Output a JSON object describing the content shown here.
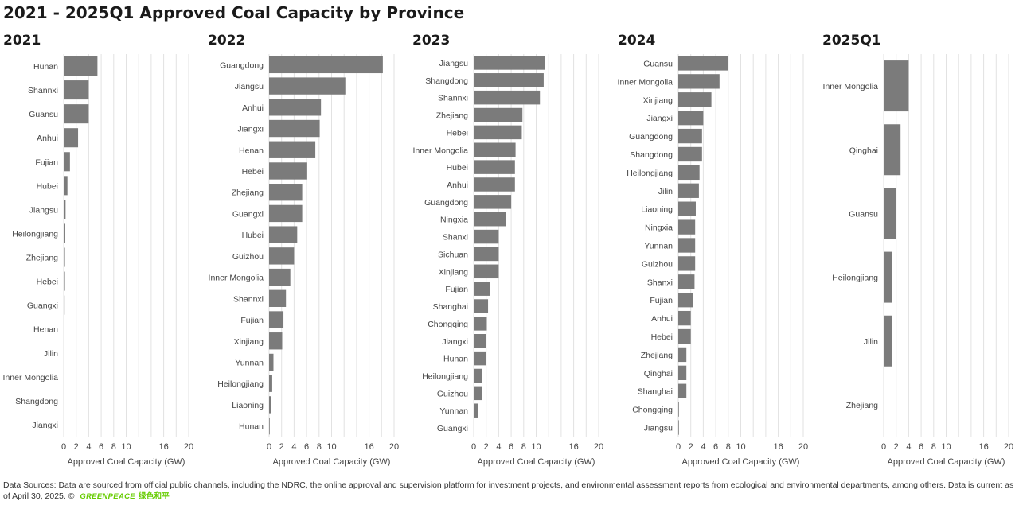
{
  "title": "2021 - 2025Q1 Approved Coal Capacity by Province",
  "footer": {
    "text": "Data Sources: Data are sourced from official public channels, including the NDRC, the online approval and supervision platform for investment projects, and environmental assessment reports from ecological and environmental departments, among others. Data is current as of April 30, 2025. ©",
    "logo": "GREENPEACE",
    "logo_cn": "绿色和平"
  },
  "colors": {
    "bar": "#7b7b7b",
    "grid": "#e2e2e2"
  },
  "chart_data": [
    {
      "type": "bar",
      "orientation": "horizontal",
      "title": "2021",
      "xlabel": "Approved Coal Capacity (GW)",
      "xlim": [
        0,
        20
      ],
      "xticks": [
        0,
        2,
        4,
        6,
        8,
        10,
        16,
        20
      ],
      "grid": true,
      "categories": [
        "Hunan",
        "Shannxi",
        "Guansu",
        "Anhui",
        "Fujian",
        "Hubei",
        "Jiangsu",
        "Heilongjiang",
        "Zhejiang",
        "Hebei",
        "Guangxi",
        "Henan",
        "Jilin",
        "Inner Mongolia",
        "Shangdong",
        "Jiangxi"
      ],
      "values": [
        5.4,
        4.0,
        4.0,
        2.3,
        1.0,
        0.6,
        0.3,
        0.25,
        0.2,
        0.2,
        0.15,
        0.1,
        0.1,
        0.05,
        0.05,
        0.05
      ]
    },
    {
      "type": "bar",
      "orientation": "horizontal",
      "title": "2022",
      "xlabel": "Approved Coal Capacity (GW)",
      "xlim": [
        0,
        20
      ],
      "xticks": [
        0,
        2,
        4,
        6,
        8,
        10,
        16,
        20
      ],
      "grid": true,
      "categories": [
        "Guangdong",
        "Jiangsu",
        "Anhui",
        "Jiangxi",
        "Henan",
        "Hebei",
        "Zhejiang",
        "Guangxi",
        "Hubei",
        "Guizhou",
        "Inner Mongolia",
        "Shannxi",
        "Fujian",
        "Xinjiang",
        "Yunnan",
        "Heilongjiang",
        "Liaoning",
        "Hunan"
      ],
      "values": [
        18.2,
        12.2,
        8.3,
        8.1,
        7.4,
        6.1,
        5.3,
        5.3,
        4.5,
        4.0,
        3.4,
        2.7,
        2.3,
        2.1,
        0.7,
        0.5,
        0.3,
        0.1
      ]
    },
    {
      "type": "bar",
      "orientation": "horizontal",
      "title": "2023",
      "xlabel": "Approved Coal Capacity (GW)",
      "xlim": [
        0,
        20
      ],
      "xticks": [
        0,
        2,
        4,
        6,
        8,
        10,
        16,
        20
      ],
      "grid": true,
      "categories": [
        "Jiangsu",
        "Shangdong",
        "Shannxi",
        "Zhejiang",
        "Hebei",
        "Inner Mongolia",
        "Hubei",
        "Anhui",
        "Guangdong",
        "Ningxia",
        "Shanxi",
        "Sichuan",
        "Xinjiang",
        "Fujian",
        "Shanghai",
        "Chongqing",
        "Jiangxi",
        "Hunan",
        "Heilongjiang",
        "Guizhou",
        "Yunnan",
        "Guangxi"
      ],
      "values": [
        11.4,
        11.2,
        10.6,
        7.8,
        7.7,
        6.7,
        6.6,
        6.6,
        6.0,
        5.1,
        4.0,
        4.0,
        4.0,
        2.6,
        2.3,
        2.1,
        2.0,
        2.0,
        1.4,
        1.3,
        0.7,
        0.1
      ]
    },
    {
      "type": "bar",
      "orientation": "horizontal",
      "title": "2024",
      "xlabel": "Approved Coal Capacity (GW)",
      "xlim": [
        0,
        20
      ],
      "xticks": [
        0,
        2,
        4,
        6,
        8,
        10,
        16,
        20
      ],
      "grid": true,
      "categories": [
        "Guansu",
        "Inner Mongolia",
        "Xinjiang",
        "Jiangxi",
        "Guangdong",
        "Shangdong",
        "Heilongjiang",
        "Jilin",
        "Liaoning",
        "Ningxia",
        "Yunnan",
        "Guizhou",
        "Shanxi",
        "Fujian",
        "Anhui",
        "Hebei",
        "Zhejiang",
        "Qinghai",
        "Shanghai",
        "Chongqing",
        "Jiangsu"
      ],
      "values": [
        8.0,
        6.6,
        5.3,
        4.0,
        3.8,
        3.8,
        3.4,
        3.3,
        2.8,
        2.7,
        2.7,
        2.7,
        2.6,
        2.3,
        2.0,
        2.0,
        1.3,
        1.3,
        1.3,
        0.1,
        0.1
      ]
    },
    {
      "type": "bar",
      "orientation": "horizontal",
      "title": "2025Q1",
      "xlabel": "Approved Coal Capacity (GW)",
      "xlim": [
        0,
        20
      ],
      "xticks": [
        0,
        2,
        4,
        6,
        8,
        10,
        16,
        20
      ],
      "grid": true,
      "categories": [
        "Inner Mongolia",
        "Qinghai",
        "Guansu",
        "Heilongjiang",
        "Jilin",
        "Zhejiang"
      ],
      "values": [
        4.0,
        2.7,
        2.0,
        1.3,
        1.3,
        0.05
      ]
    }
  ]
}
